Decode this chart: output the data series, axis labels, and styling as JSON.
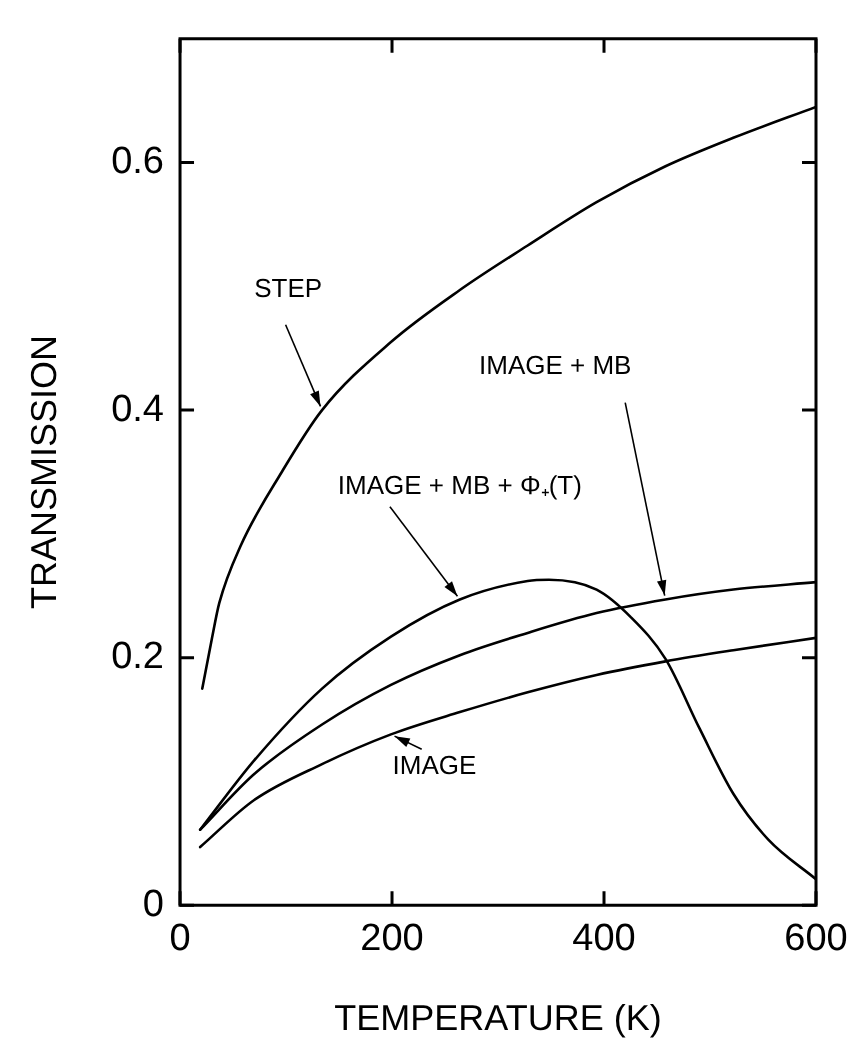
{
  "chart_data": {
    "type": "line",
    "xlabel": "TEMPERATURE (K)",
    "ylabel": "TRANSMISSION",
    "xlim": [
      0,
      600
    ],
    "xticks": [
      0,
      200,
      400,
      600
    ],
    "ylim": [
      0,
      0.7
    ],
    "yticks": [
      0,
      0.2,
      0.4,
      0.6
    ],
    "grid": false,
    "marker": "none",
    "line_style": "solid",
    "series": [
      {
        "name": "STEP",
        "color": "#000000",
        "x": [
          21,
          30,
          37,
          57,
          96,
          134,
          199,
          264,
          328,
          393,
          458,
          522,
          600
        ],
        "values": [
          0.175,
          0.215,
          0.244,
          0.29,
          0.35,
          0.4,
          0.455,
          0.497,
          0.533,
          0.568,
          0.597,
          0.62,
          0.645
        ]
      },
      {
        "name": "IMAGE + MB + Φ₊(T)",
        "color": "#000000",
        "x": [
          19,
          70,
          134,
          199,
          264,
          328,
          348,
          393,
          425,
          458,
          490,
          522,
          555,
          600
        ],
        "values": [
          0.061,
          0.117,
          0.175,
          0.217,
          0.247,
          0.262,
          0.263,
          0.255,
          0.233,
          0.199,
          0.143,
          0.09,
          0.053,
          0.021
        ]
      },
      {
        "name": "IMAGE + MB",
        "color": "#000000",
        "x": [
          19,
          70,
          134,
          199,
          264,
          328,
          393,
          458,
          522,
          600
        ],
        "values": [
          0.061,
          0.106,
          0.146,
          0.178,
          0.202,
          0.22,
          0.236,
          0.247,
          0.255,
          0.261
        ]
      },
      {
        "name": "IMAGE",
        "color": "#000000",
        "x": [
          19,
          70,
          134,
          199,
          264,
          328,
          393,
          458,
          522,
          600
        ],
        "values": [
          0.047,
          0.085,
          0.114,
          0.138,
          0.156,
          0.172,
          0.186,
          0.197,
          0.206,
          0.216
        ]
      }
    ]
  }
}
